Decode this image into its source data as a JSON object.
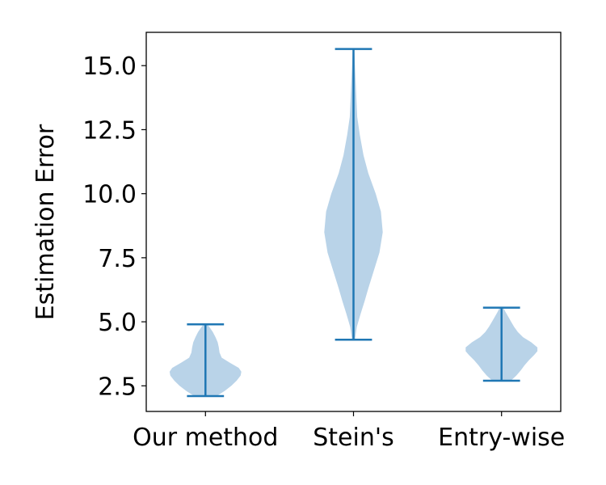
{
  "chart_data": {
    "type": "violin",
    "title": "",
    "xlabel": "",
    "ylabel": "Estimation Error",
    "ylim": [
      1.5,
      16.3
    ],
    "yticks": [
      2.5,
      5.0,
      7.5,
      10.0,
      12.5,
      15.0
    ],
    "ytick_labels": [
      "2.5",
      "5.0",
      "7.5",
      "10.0",
      "12.5",
      "15.0"
    ],
    "categories": [
      "Our method",
      "Stein's",
      "Entry-wise"
    ],
    "grid": false,
    "colors": {
      "fill": "#b9d3e8",
      "line": "#1f77b4"
    },
    "series": [
      {
        "min": 2.1,
        "max": 4.9,
        "density": [
          [
            2.1,
            0.3
          ],
          [
            2.3,
            0.52
          ],
          [
            2.5,
            0.7
          ],
          [
            2.7,
            0.84
          ],
          [
            2.9,
            0.95
          ],
          [
            3.05,
            0.97
          ],
          [
            3.2,
            0.9
          ],
          [
            3.4,
            0.66
          ],
          [
            3.6,
            0.44
          ],
          [
            3.8,
            0.38
          ],
          [
            4.0,
            0.36
          ],
          [
            4.2,
            0.33
          ],
          [
            4.4,
            0.27
          ],
          [
            4.6,
            0.2
          ],
          [
            4.75,
            0.13
          ],
          [
            4.9,
            0.05
          ]
        ]
      },
      {
        "min": 4.3,
        "max": 15.65,
        "density": [
          [
            4.3,
            0.04
          ],
          [
            4.8,
            0.09
          ],
          [
            5.3,
            0.19
          ],
          [
            5.8,
            0.3
          ],
          [
            6.3,
            0.4
          ],
          [
            7.0,
            0.55
          ],
          [
            7.7,
            0.7
          ],
          [
            8.5,
            0.79
          ],
          [
            9.3,
            0.74
          ],
          [
            10.0,
            0.6
          ],
          [
            10.8,
            0.4
          ],
          [
            11.5,
            0.27
          ],
          [
            12.3,
            0.17
          ],
          [
            13.0,
            0.1
          ],
          [
            14.0,
            0.07
          ],
          [
            15.0,
            0.04
          ],
          [
            15.65,
            0.02
          ]
        ]
      },
      {
        "min": 2.7,
        "max": 5.55,
        "density": [
          [
            2.7,
            0.25
          ],
          [
            2.9,
            0.4
          ],
          [
            3.1,
            0.52
          ],
          [
            3.3,
            0.62
          ],
          [
            3.5,
            0.74
          ],
          [
            3.7,
            0.88
          ],
          [
            3.85,
            0.97
          ],
          [
            4.0,
            0.97
          ],
          [
            4.2,
            0.8
          ],
          [
            4.4,
            0.58
          ],
          [
            4.6,
            0.44
          ],
          [
            4.8,
            0.34
          ],
          [
            5.0,
            0.26
          ],
          [
            5.2,
            0.18
          ],
          [
            5.4,
            0.1
          ],
          [
            5.55,
            0.05
          ]
        ]
      }
    ]
  }
}
